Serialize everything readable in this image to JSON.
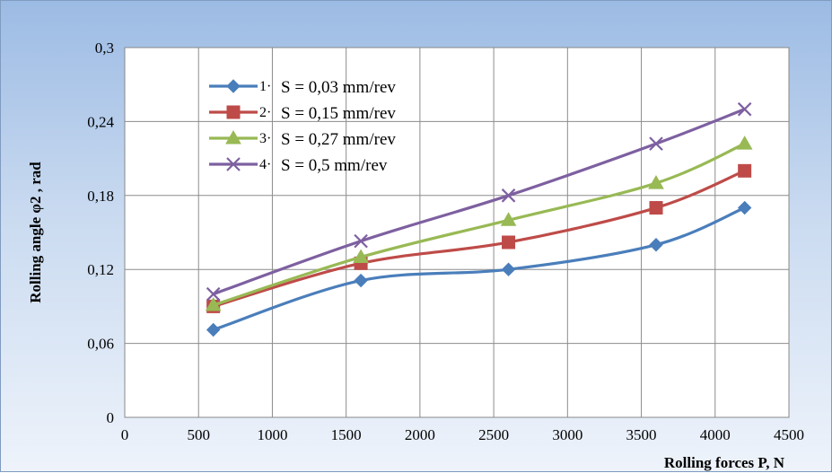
{
  "chart_data": {
    "type": "line",
    "title": "",
    "xlabel": "Rolling forces P, N",
    "ylabel": "Rolling angle φ2 , rad",
    "xlim": [
      0,
      4500
    ],
    "ylim": [
      0,
      0.3
    ],
    "x_ticks": [
      0,
      500,
      1000,
      1500,
      2000,
      2500,
      3000,
      3500,
      4000,
      4500
    ],
    "x_tick_labels": [
      "0",
      "500",
      "1000",
      "1500",
      "2000",
      "2500",
      "3000",
      "3500",
      "4000",
      "4500"
    ],
    "y_ticks": [
      0,
      0.06,
      0.12,
      0.18,
      0.24,
      0.3
    ],
    "y_tick_labels": [
      "0",
      "0,06",
      "0,12",
      "0,18",
      "0,24",
      "0,3"
    ],
    "grid": true,
    "legend_position": "top-left",
    "x": [
      600,
      1600,
      2600,
      3600,
      4200
    ],
    "series": [
      {
        "name": "S = 0,03 mm/rev",
        "number": "1",
        "marker": "diamond",
        "color": "#4a7ebb",
        "values": [
          0.071,
          0.111,
          0.12,
          0.14,
          0.17
        ]
      },
      {
        "name": "S = 0,15 mm/rev",
        "number": "2",
        "marker": "square",
        "color": "#be4b48",
        "values": [
          0.09,
          0.125,
          0.142,
          0.17,
          0.2
        ]
      },
      {
        "name": "S = 0,27 mm/rev",
        "number": "3",
        "marker": "triangle",
        "color": "#98b954",
        "values": [
          0.091,
          0.13,
          0.16,
          0.19,
          0.222
        ]
      },
      {
        "name": "S = 0,5 mm/rev",
        "number": "4",
        "marker": "x",
        "color": "#7d60a0",
        "values": [
          0.1,
          0.143,
          0.18,
          0.222,
          0.25
        ]
      }
    ]
  }
}
